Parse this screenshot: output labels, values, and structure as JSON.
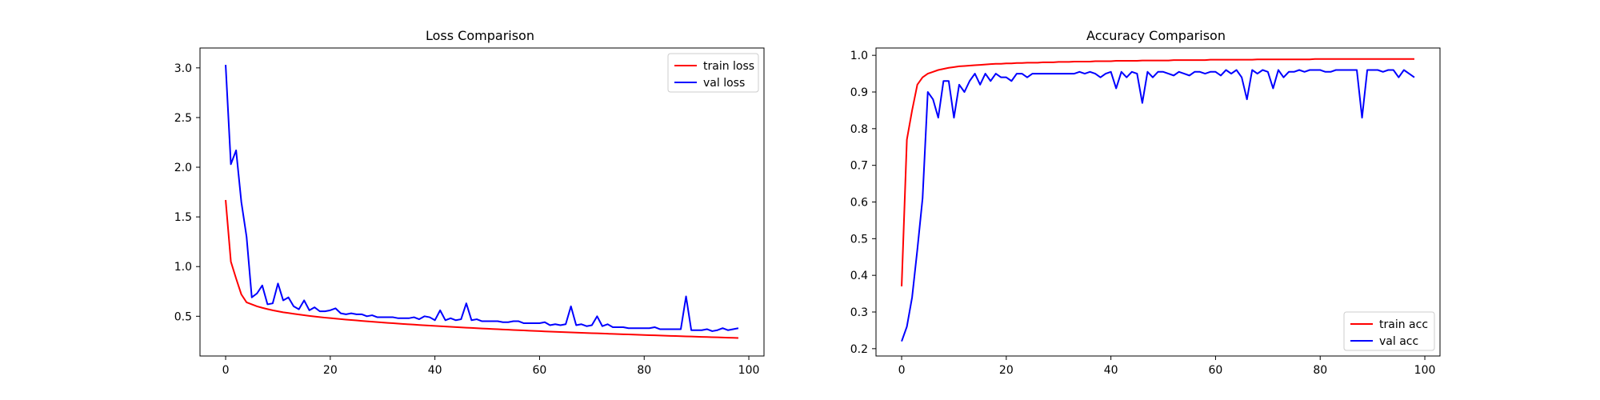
{
  "chart_data": [
    {
      "type": "line",
      "title": "Loss Comparison",
      "xlabel": "",
      "ylabel": "",
      "xlim": [
        -4.9,
        102.9
      ],
      "ylim": [
        0.1,
        3.2
      ],
      "xticks": [
        0,
        20,
        40,
        60,
        80,
        100
      ],
      "yticks": [
        0.5,
        1.0,
        1.5,
        2.0,
        2.5,
        3.0
      ],
      "xtick_labels": [
        "0",
        "20",
        "40",
        "60",
        "80",
        "100"
      ],
      "ytick_labels": [
        "0.5",
        "1.0",
        "1.5",
        "2.0",
        "2.5",
        "3.0"
      ],
      "grid": false,
      "legend": "top-right",
      "series": [
        {
          "name": "train loss",
          "color": "#ff0000",
          "x": [
            0,
            1,
            2,
            3,
            4,
            5,
            6,
            7,
            8,
            9,
            10,
            11,
            12,
            13,
            14,
            15,
            16,
            17,
            18,
            19,
            20,
            21,
            22,
            23,
            24,
            25,
            26,
            27,
            28,
            29,
            30,
            31,
            32,
            33,
            34,
            35,
            36,
            37,
            38,
            39,
            40,
            41,
            42,
            43,
            44,
            45,
            46,
            47,
            48,
            49,
            50,
            51,
            52,
            53,
            54,
            55,
            56,
            57,
            58,
            59,
            60,
            61,
            62,
            63,
            64,
            65,
            66,
            67,
            68,
            69,
            70,
            71,
            72,
            73,
            74,
            75,
            76,
            77,
            78,
            79,
            80,
            81,
            82,
            83,
            84,
            85,
            86,
            87,
            88,
            89,
            90,
            91,
            92,
            93,
            94,
            95,
            96,
            97,
            98
          ],
          "values": [
            1.67,
            1.05,
            0.88,
            0.72,
            0.64,
            0.62,
            0.6,
            0.585,
            0.572,
            0.56,
            0.55,
            0.54,
            0.533,
            0.525,
            0.518,
            0.511,
            0.504,
            0.498,
            0.492,
            0.486,
            0.481,
            0.476,
            0.471,
            0.466,
            0.462,
            0.458,
            0.453,
            0.449,
            0.445,
            0.441,
            0.437,
            0.433,
            0.43,
            0.426,
            0.422,
            0.419,
            0.416,
            0.412,
            0.409,
            0.406,
            0.403,
            0.4,
            0.397,
            0.394,
            0.391,
            0.388,
            0.385,
            0.383,
            0.38,
            0.377,
            0.375,
            0.372,
            0.37,
            0.367,
            0.365,
            0.362,
            0.36,
            0.358,
            0.355,
            0.353,
            0.351,
            0.348,
            0.346,
            0.344,
            0.342,
            0.34,
            0.338,
            0.336,
            0.334,
            0.332,
            0.33,
            0.328,
            0.326,
            0.324,
            0.322,
            0.32,
            0.318,
            0.317,
            0.315,
            0.313,
            0.311,
            0.309,
            0.308,
            0.306,
            0.304,
            0.302,
            0.301,
            0.299,
            0.297,
            0.296,
            0.294,
            0.292,
            0.291,
            0.289,
            0.288,
            0.286,
            0.284,
            0.283,
            0.281
          ]
        },
        {
          "name": "val loss",
          "color": "#0000ff",
          "x": [
            0,
            1,
            2,
            3,
            4,
            5,
            6,
            7,
            8,
            9,
            10,
            11,
            12,
            13,
            14,
            15,
            16,
            17,
            18,
            19,
            20,
            21,
            22,
            23,
            24,
            25,
            26,
            27,
            28,
            29,
            30,
            31,
            32,
            33,
            34,
            35,
            36,
            37,
            38,
            39,
            40,
            41,
            42,
            43,
            44,
            45,
            46,
            47,
            48,
            49,
            50,
            51,
            52,
            53,
            54,
            55,
            56,
            57,
            58,
            59,
            60,
            61,
            62,
            63,
            64,
            65,
            66,
            67,
            68,
            69,
            70,
            71,
            72,
            73,
            74,
            75,
            76,
            77,
            78,
            79,
            80,
            81,
            82,
            83,
            84,
            85,
            86,
            87,
            88,
            89,
            90,
            91,
            92,
            93,
            94,
            95,
            96,
            97,
            98
          ],
          "values": [
            3.03,
            2.03,
            2.17,
            1.65,
            1.3,
            0.69,
            0.73,
            0.81,
            0.62,
            0.63,
            0.83,
            0.66,
            0.69,
            0.6,
            0.57,
            0.66,
            0.56,
            0.59,
            0.55,
            0.55,
            0.56,
            0.58,
            0.53,
            0.52,
            0.53,
            0.52,
            0.52,
            0.5,
            0.51,
            0.49,
            0.49,
            0.49,
            0.49,
            0.48,
            0.48,
            0.48,
            0.49,
            0.47,
            0.5,
            0.49,
            0.46,
            0.56,
            0.46,
            0.48,
            0.46,
            0.47,
            0.63,
            0.46,
            0.47,
            0.45,
            0.45,
            0.45,
            0.45,
            0.44,
            0.44,
            0.45,
            0.45,
            0.43,
            0.43,
            0.43,
            0.43,
            0.44,
            0.41,
            0.42,
            0.41,
            0.42,
            0.6,
            0.41,
            0.42,
            0.4,
            0.41,
            0.5,
            0.4,
            0.42,
            0.39,
            0.39,
            0.39,
            0.38,
            0.38,
            0.38,
            0.38,
            0.38,
            0.39,
            0.37,
            0.37,
            0.37,
            0.37,
            0.37,
            0.7,
            0.36,
            0.36,
            0.36,
            0.37,
            0.35,
            0.36,
            0.38,
            0.36,
            0.37,
            0.38
          ]
        }
      ]
    },
    {
      "type": "line",
      "title": "Accuracy Comparison",
      "xlabel": "",
      "ylabel": "",
      "xlim": [
        -4.9,
        102.9
      ],
      "ylim": [
        0.18,
        1.02
      ],
      "xticks": [
        0,
        20,
        40,
        60,
        80,
        100
      ],
      "yticks": [
        0.2,
        0.3,
        0.4,
        0.5,
        0.6,
        0.7,
        0.8,
        0.9,
        1.0
      ],
      "xtick_labels": [
        "0",
        "20",
        "40",
        "60",
        "80",
        "100"
      ],
      "ytick_labels": [
        "0.2",
        "0.3",
        "0.4",
        "0.5",
        "0.6",
        "0.7",
        "0.8",
        "0.9",
        "1.0"
      ],
      "grid": false,
      "legend": "bottom-right",
      "series": [
        {
          "name": "train acc",
          "color": "#ff0000",
          "x": [
            0,
            1,
            2,
            3,
            4,
            5,
            6,
            7,
            8,
            9,
            10,
            11,
            12,
            13,
            14,
            15,
            16,
            17,
            18,
            19,
            20,
            21,
            22,
            23,
            24,
            25,
            26,
            27,
            28,
            29,
            30,
            31,
            32,
            33,
            34,
            35,
            36,
            37,
            38,
            39,
            40,
            41,
            42,
            43,
            44,
            45,
            46,
            47,
            48,
            49,
            50,
            51,
            52,
            53,
            54,
            55,
            56,
            57,
            58,
            59,
            60,
            61,
            62,
            63,
            64,
            65,
            66,
            67,
            68,
            69,
            70,
            71,
            72,
            73,
            74,
            75,
            76,
            77,
            78,
            79,
            80,
            81,
            82,
            83,
            84,
            85,
            86,
            87,
            88,
            89,
            90,
            91,
            92,
            93,
            94,
            95,
            96,
            97,
            98
          ],
          "values": [
            0.37,
            0.77,
            0.85,
            0.92,
            0.94,
            0.95,
            0.955,
            0.96,
            0.963,
            0.966,
            0.968,
            0.97,
            0.971,
            0.972,
            0.973,
            0.974,
            0.975,
            0.976,
            0.977,
            0.977,
            0.978,
            0.978,
            0.979,
            0.979,
            0.98,
            0.98,
            0.98,
            0.981,
            0.981,
            0.981,
            0.982,
            0.982,
            0.982,
            0.983,
            0.983,
            0.983,
            0.983,
            0.984,
            0.984,
            0.984,
            0.984,
            0.985,
            0.985,
            0.985,
            0.985,
            0.985,
            0.986,
            0.986,
            0.986,
            0.986,
            0.986,
            0.986,
            0.987,
            0.987,
            0.987,
            0.987,
            0.987,
            0.987,
            0.987,
            0.988,
            0.988,
            0.988,
            0.988,
            0.988,
            0.988,
            0.988,
            0.988,
            0.988,
            0.989,
            0.989,
            0.989,
            0.989,
            0.989,
            0.989,
            0.989,
            0.989,
            0.989,
            0.989,
            0.989,
            0.99,
            0.99,
            0.99,
            0.99,
            0.99,
            0.99,
            0.99,
            0.99,
            0.99,
            0.99,
            0.99,
            0.99,
            0.99,
            0.99,
            0.99,
            0.99,
            0.99,
            0.99,
            0.99,
            0.99
          ]
        },
        {
          "name": "val acc",
          "color": "#0000ff",
          "x": [
            0,
            1,
            2,
            3,
            4,
            5,
            6,
            7,
            8,
            9,
            10,
            11,
            12,
            13,
            14,
            15,
            16,
            17,
            18,
            19,
            20,
            21,
            22,
            23,
            24,
            25,
            26,
            27,
            28,
            29,
            30,
            31,
            32,
            33,
            34,
            35,
            36,
            37,
            38,
            39,
            40,
            41,
            42,
            43,
            44,
            45,
            46,
            47,
            48,
            49,
            50,
            51,
            52,
            53,
            54,
            55,
            56,
            57,
            58,
            59,
            60,
            61,
            62,
            63,
            64,
            65,
            66,
            67,
            68,
            69,
            70,
            71,
            72,
            73,
            74,
            75,
            76,
            77,
            78,
            79,
            80,
            81,
            82,
            83,
            84,
            85,
            86,
            87,
            88,
            89,
            90,
            91,
            92,
            93,
            94,
            95,
            96,
            97,
            98
          ],
          "values": [
            0.22,
            0.26,
            0.34,
            0.47,
            0.61,
            0.9,
            0.88,
            0.83,
            0.93,
            0.93,
            0.83,
            0.92,
            0.9,
            0.93,
            0.95,
            0.92,
            0.95,
            0.93,
            0.95,
            0.94,
            0.94,
            0.93,
            0.95,
            0.95,
            0.94,
            0.95,
            0.95,
            0.95,
            0.95,
            0.95,
            0.95,
            0.95,
            0.95,
            0.95,
            0.955,
            0.95,
            0.955,
            0.95,
            0.94,
            0.95,
            0.955,
            0.91,
            0.955,
            0.94,
            0.955,
            0.95,
            0.87,
            0.955,
            0.94,
            0.955,
            0.955,
            0.95,
            0.945,
            0.955,
            0.95,
            0.945,
            0.955,
            0.955,
            0.95,
            0.955,
            0.955,
            0.945,
            0.96,
            0.95,
            0.96,
            0.94,
            0.88,
            0.96,
            0.95,
            0.96,
            0.955,
            0.91,
            0.96,
            0.94,
            0.955,
            0.955,
            0.96,
            0.955,
            0.96,
            0.96,
            0.96,
            0.955,
            0.955,
            0.96,
            0.96,
            0.96,
            0.96,
            0.96,
            0.83,
            0.96,
            0.96,
            0.96,
            0.955,
            0.96,
            0.96,
            0.94,
            0.96,
            0.95,
            0.94
          ]
        }
      ]
    }
  ]
}
